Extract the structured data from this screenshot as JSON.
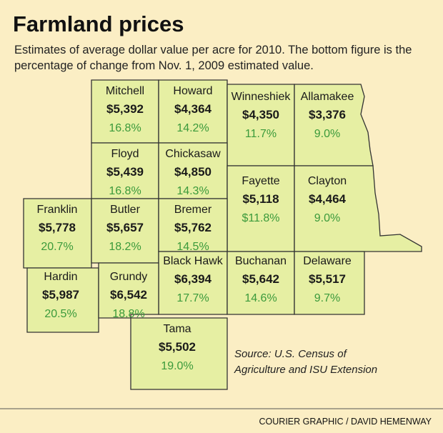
{
  "header": {
    "title": "Farmland prices",
    "subtitle_lines": [
      "Estimates of average dollar value per acre for 2010. The bottom figure is the",
      "percentage of change from Nov. 1, 2009 estimated value."
    ]
  },
  "counties": [
    {
      "name": "Mitchell",
      "price": "$5,392",
      "change": "16.8%"
    },
    {
      "name": "Howard",
      "price": "$4,364",
      "change": "14.2%"
    },
    {
      "name": "Winneshiek",
      "price": "$4,350",
      "change": "11.7%"
    },
    {
      "name": "Allamakee",
      "price": "$3,376",
      "change": "9.0%"
    },
    {
      "name": "Floyd",
      "price": "$5,439",
      "change": "16.8%"
    },
    {
      "name": "Chickasaw",
      "price": "$4,850",
      "change": "14.3%"
    },
    {
      "name": "Fayette",
      "price": "$5,118",
      "change": "$11.8%"
    },
    {
      "name": "Clayton",
      "price": "$4,464",
      "change": "9.0%"
    },
    {
      "name": "Franklin",
      "price": "$5,778",
      "change": "20.7%"
    },
    {
      "name": "Butler",
      "price": "$5,657",
      "change": "18.2%"
    },
    {
      "name": "Bremer",
      "price": "$5,762",
      "change": "14.5%"
    },
    {
      "name": "Black Hawk",
      "price": "$6,394",
      "change": "17.7%"
    },
    {
      "name": "Buchanan",
      "price": "$5,642",
      "change": "14.6%"
    },
    {
      "name": "Delaware",
      "price": "$5,517",
      "change": "9.7%"
    },
    {
      "name": "Hardin",
      "price": "$5,987",
      "change": "20.5%"
    },
    {
      "name": "Grundy",
      "price": "$6,542",
      "change": "18.8%"
    },
    {
      "name": "Tama",
      "price": "$5,502",
      "change": "19.0%"
    }
  ],
  "source_lines": [
    "Source: U.S. Census of",
    "Agriculture and ISU Extension"
  ],
  "credit": "COURIER GRAPHIC / DAVID HEMENWAY"
}
